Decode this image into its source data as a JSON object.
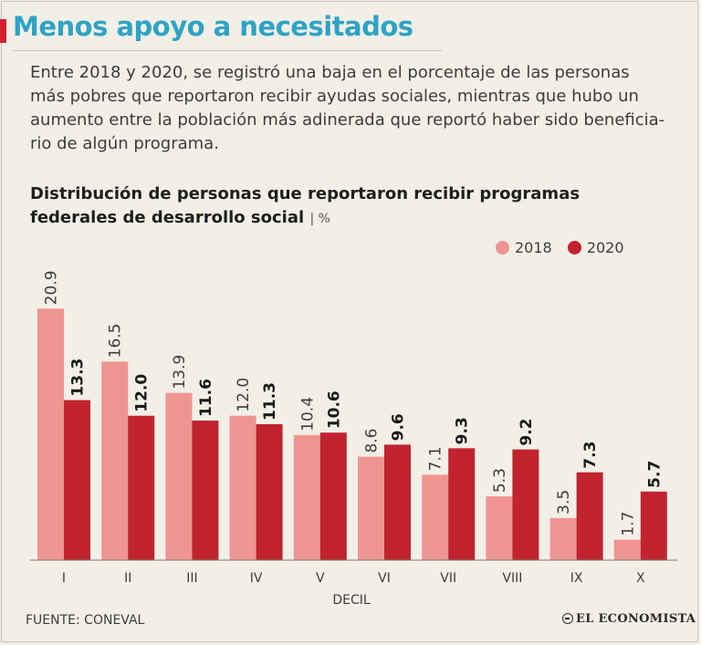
{
  "header": {
    "title": "Menos apoyo a necesitados",
    "description_lines": [
      "Entre 2018 y 2020, se registró una baja en el porcentaje de las personas",
      "más pobres que reportaron recibir ayudas sociales, mientras que hubo un",
      "aumento entre la población más adinerada que reportó haber sido beneficia-",
      "rio de algún programa."
    ]
  },
  "chart_title_lines": [
    "Distribución de personas que reportaron recibir programas",
    "federales de desarrollo social"
  ],
  "chart_unit": "| %",
  "source": "FUENTE: CONEVAL",
  "logo_text": "EL ECONOMISTA",
  "colors": {
    "series_2018": "#ef9591",
    "series_2020": "#c1232f",
    "title": "#2ea3c5",
    "accent": "#d3222f",
    "background": "#f2efe7"
  },
  "chart_data": {
    "type": "bar",
    "title": "Distribución de personas que reportaron recibir programas federales de desarrollo social",
    "xlabel": "DECIL",
    "ylabel": "%",
    "categories": [
      "I",
      "II",
      "III",
      "IV",
      "V",
      "VI",
      "VII",
      "VIII",
      "IX",
      "X"
    ],
    "series": [
      {
        "name": "2018",
        "values": [
          20.9,
          16.5,
          13.9,
          12.0,
          10.4,
          8.6,
          7.1,
          5.3,
          3.5,
          1.7
        ],
        "labels": [
          "20.9",
          "16.5",
          "13.9",
          "12.0",
          "10.4",
          "8.6",
          "7.1",
          "5.3",
          "3.5",
          "1.7"
        ]
      },
      {
        "name": "2020",
        "values": [
          13.3,
          12.0,
          11.6,
          11.3,
          10.6,
          9.6,
          9.3,
          9.2,
          7.3,
          5.7
        ],
        "labels": [
          "13.3",
          "12.0",
          "11.6",
          "11.3",
          "10.6",
          "9.6",
          "9.3",
          "9.2",
          "7.3",
          "5.7"
        ]
      }
    ],
    "ylim": [
      0,
      21
    ],
    "grid": false,
    "legend": "top-right"
  }
}
